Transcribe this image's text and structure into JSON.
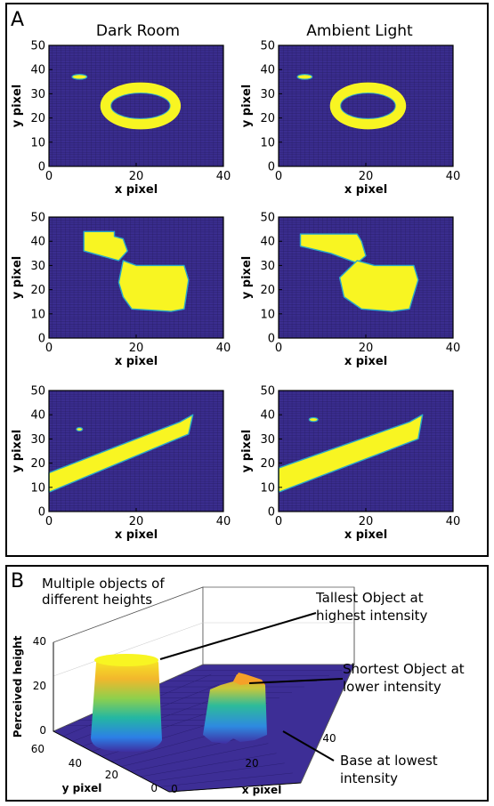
{
  "panel_a": {
    "letter": "A",
    "column_titles": [
      "Dark Room",
      "Ambient Light"
    ],
    "xlabel": "x pixel",
    "ylabel": "y pixel",
    "xticks": [
      "0",
      "20",
      "40"
    ],
    "yticks": [
      "0",
      "10",
      "20",
      "30",
      "40",
      "50"
    ]
  },
  "panel_b": {
    "letter": "B",
    "annotations": {
      "multiple_1": "Multiple objects of",
      "multiple_2": "different heights",
      "tallest_1": "Tallest Object at",
      "tallest_2": "highest intensity",
      "shortest_1": "Shortest Object at",
      "shortest_2": "lower intensity",
      "base_1": "Base at lowest",
      "base_2": "intensity"
    },
    "zlabel": "Perceived height",
    "xlabel": "x pixel",
    "ylabel": "y pixel",
    "zticks": [
      "0",
      "20",
      "40"
    ],
    "xticks": [
      "0",
      "20",
      "40"
    ],
    "yticks": [
      "0",
      "20",
      "40",
      "60"
    ]
  },
  "colors": {
    "background": "#3a2d8f",
    "object": "#f8f522",
    "edge": "#2aa8c8",
    "grid": "#241a5e"
  },
  "chart_data": [
    {
      "type": "heatmap",
      "title": "Dark Room",
      "description_row": 1,
      "xlim": [
        0,
        40
      ],
      "ylim": [
        0,
        50
      ],
      "objects": [
        {
          "shape": "ring",
          "cx": 21,
          "cy": 25,
          "rx": 8,
          "ry": 7.5
        },
        {
          "shape": "blob",
          "cx": 7,
          "cy": 37,
          "rx": 1.7,
          "ry": 1
        }
      ]
    },
    {
      "type": "heatmap",
      "title": "Ambient Light",
      "description_row": 1,
      "xlim": [
        0,
        40
      ],
      "ylim": [
        0,
        50
      ],
      "objects": [
        {
          "shape": "ring",
          "cx": 20.5,
          "cy": 25,
          "rx": 7.5,
          "ry": 7.5
        },
        {
          "shape": "blob",
          "cx": 6,
          "cy": 37,
          "rx": 1.7,
          "ry": 1
        }
      ]
    },
    {
      "type": "heatmap",
      "title": "",
      "description_row": 2,
      "xlim": [
        0,
        40
      ],
      "ylim": [
        0,
        50
      ],
      "objects": [
        {
          "shape": "polygon",
          "points": [
            [
              8,
              44
            ],
            [
              15,
              44
            ],
            [
              15,
              42
            ],
            [
              17,
              41
            ],
            [
              18,
              36
            ],
            [
              16,
              32
            ],
            [
              8,
              36
            ]
          ]
        },
        {
          "shape": "polygon",
          "points": [
            [
              17,
              32
            ],
            [
              20,
              30
            ],
            [
              31,
              30
            ],
            [
              32,
              24
            ],
            [
              31,
              12
            ],
            [
              28,
              11
            ],
            [
              19,
              12
            ],
            [
              17,
              17
            ],
            [
              16,
              23
            ]
          ]
        }
      ]
    },
    {
      "type": "heatmap",
      "title": "",
      "description_row": 2,
      "xlim": [
        0,
        40
      ],
      "ylim": [
        0,
        50
      ],
      "objects": [
        {
          "shape": "polygon",
          "points": [
            [
              5,
              43
            ],
            [
              18,
              43
            ],
            [
              19,
              40
            ],
            [
              20,
              34
            ],
            [
              18,
              31
            ],
            [
              12,
              35
            ],
            [
              5,
              38
            ]
          ]
        },
        {
          "shape": "polygon",
          "points": [
            [
              18,
              32
            ],
            [
              22,
              30
            ],
            [
              31,
              30
            ],
            [
              32,
              24
            ],
            [
              30,
              12
            ],
            [
              26,
              11
            ],
            [
              19,
              12
            ],
            [
              15,
              17
            ],
            [
              14,
              25
            ]
          ]
        }
      ]
    },
    {
      "type": "heatmap",
      "title": "",
      "description_row": 3,
      "xlim": [
        0,
        40
      ],
      "ylim": [
        0,
        50
      ],
      "objects": [
        {
          "shape": "polygon",
          "points": [
            [
              0,
              8
            ],
            [
              32,
              32
            ],
            [
              33,
              40
            ],
            [
              30,
              37
            ],
            [
              0,
              16
            ]
          ]
        },
        {
          "shape": "blob",
          "cx": 7,
          "cy": 34,
          "rx": 0.7,
          "ry": 0.7
        }
      ]
    },
    {
      "type": "heatmap",
      "title": "",
      "description_row": 3,
      "xlim": [
        0,
        40
      ],
      "ylim": [
        0,
        50
      ],
      "objects": [
        {
          "shape": "polygon",
          "points": [
            [
              0,
              8
            ],
            [
              32,
              30
            ],
            [
              33,
              40
            ],
            [
              30,
              37
            ],
            [
              0,
              18
            ]
          ]
        },
        {
          "shape": "blob",
          "cx": 8,
          "cy": 38,
          "rx": 1,
          "ry": 0.8
        }
      ]
    },
    {
      "type": "surface",
      "xlim": [
        0,
        40
      ],
      "ylim": [
        0,
        60
      ],
      "zlim": [
        0,
        40
      ],
      "zlabel": "Perceived height",
      "xlabel": "x pixel",
      "ylabel": "y pixel",
      "objects": [
        {
          "name": "Tallest Object",
          "height": 35
        },
        {
          "name": "Shortest Object",
          "height": 25
        },
        {
          "name": "Base",
          "height": 0
        }
      ]
    }
  ]
}
